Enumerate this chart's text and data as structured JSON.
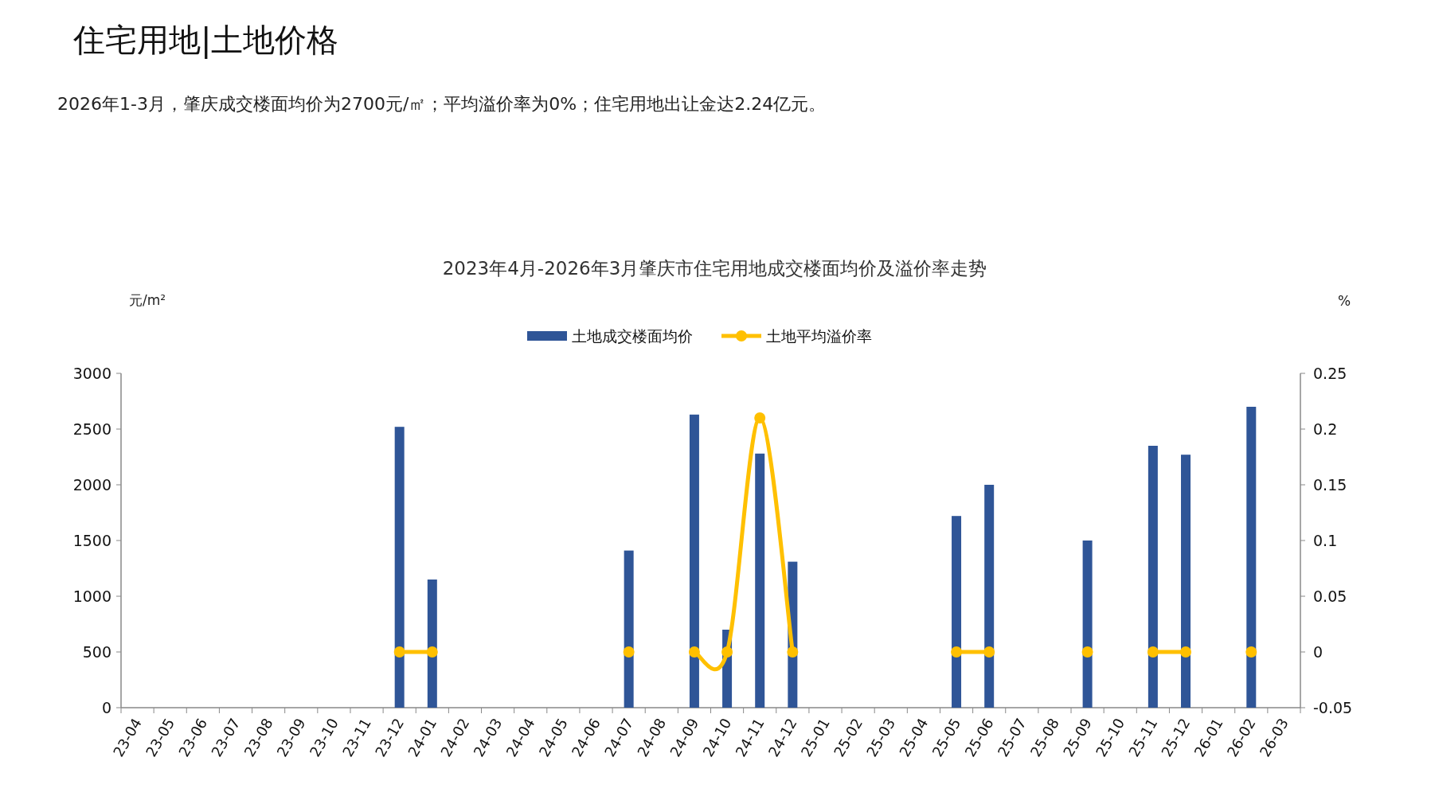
{
  "chart_data": {
    "type": "bar",
    "title": "2023年4月-2026年3月肇庆市住宅用地成交楼面均价及溢价率走势",
    "annotations": [
      "住宅用地|土地价格",
      "2026年1-3月，肇庆成交楼面均价为2700元/㎡；平均溢价率为0%；住宅用地出让金达2.24亿元。"
    ],
    "ylabel": "元/m²",
    "y2label": "%",
    "legend": "top",
    "categories": [
      "23-04",
      "23-05",
      "23-06",
      "23-07",
      "23-08",
      "23-09",
      "23-10",
      "23-11",
      "23-12",
      "24-01",
      "24-02",
      "24-03",
      "24-04",
      "24-05",
      "24-06",
      "24-07",
      "24-08",
      "24-09",
      "24-10",
      "24-11",
      "24-12",
      "25-01",
      "25-02",
      "25-03",
      "25-04",
      "25-05",
      "25-06",
      "25-07",
      "25-08",
      "25-09",
      "25-10",
      "25-11",
      "25-12",
      "26-01",
      "26-02",
      "26-03"
    ],
    "ylim": [
      0,
      3000
    ],
    "yticks": [
      0,
      500,
      1000,
      1500,
      2000,
      2500,
      3000
    ],
    "y2lim": [
      -0.05,
      0.25
    ],
    "y2ticks": [
      -0.05,
      0,
      0.05,
      0.1,
      0.15,
      0.2,
      0.25
    ],
    "series": [
      {
        "name": "土地成交楼面均价",
        "color": "#2f5597",
        "values": [
          null,
          null,
          null,
          null,
          null,
          null,
          null,
          null,
          2520,
          1150,
          null,
          null,
          null,
          null,
          null,
          1410,
          null,
          2630,
          700,
          2280,
          1310,
          null,
          null,
          null,
          null,
          1720,
          2000,
          null,
          null,
          1500,
          null,
          2350,
          2270,
          null,
          2700,
          null
        ]
      },
      {
        "name": "土地平均溢价率",
        "type": "line",
        "axis": "y2",
        "marker": "circle",
        "color": "#ffc000",
        "values": [
          null,
          null,
          null,
          null,
          null,
          null,
          null,
          null,
          0,
          0,
          null,
          null,
          null,
          null,
          null,
          0,
          null,
          0,
          0,
          0.21,
          0,
          null,
          null,
          null,
          null,
          0,
          0,
          null,
          null,
          0,
          null,
          0,
          0,
          null,
          0,
          null
        ]
      }
    ]
  }
}
